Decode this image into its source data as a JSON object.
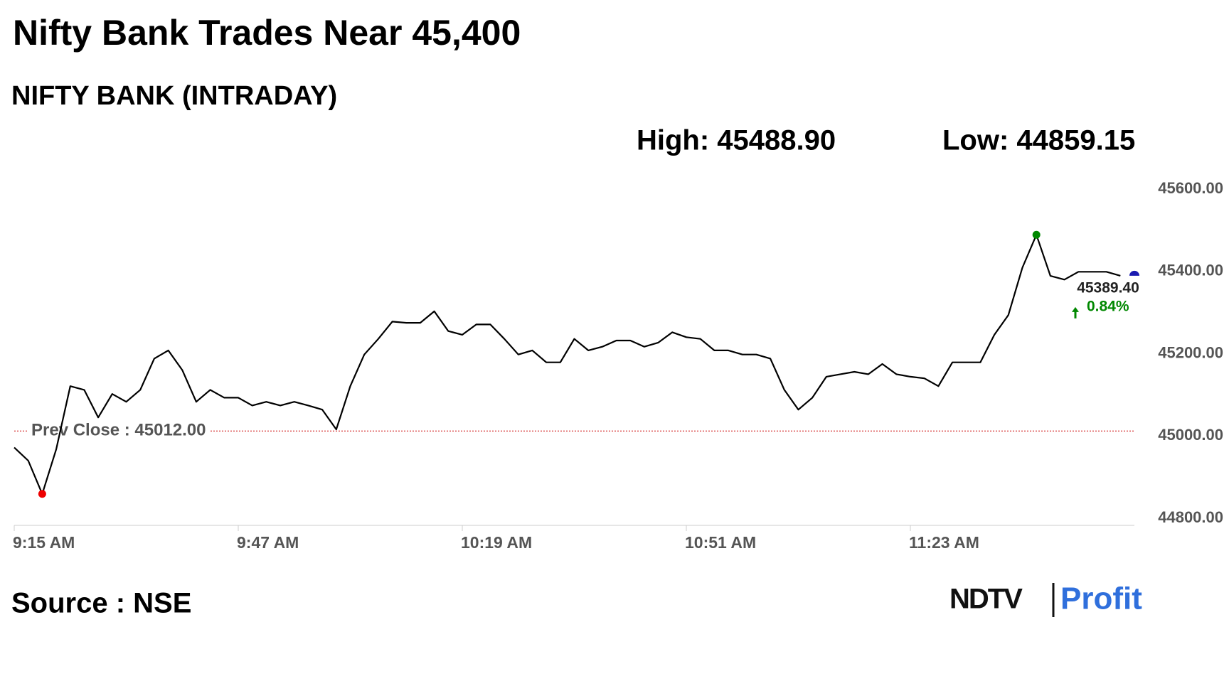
{
  "chart_data": {
    "type": "line",
    "title": "Nifty Bank Trades Near 45,400",
    "subtitle": "NIFTY BANK (INTRADAY)",
    "high_label": "High: 45488.90",
    "low_label": "Low: 44859.15",
    "prev_close_label": "Prev Close : 45012.00",
    "prev_close": 45012,
    "last_label": "45389.40",
    "change_label": "0.84%",
    "source": "Source : NSE",
    "brand": [
      "NDTV",
      "Profit"
    ],
    "color": "#000000",
    "x": [
      "9:15 AM",
      "9:17 AM",
      "9:19 AM",
      "9:21 AM",
      "9:23 AM",
      "9:25 AM",
      "9:27 AM",
      "9:29 AM",
      "9:31 AM",
      "9:33 AM",
      "9:35 AM",
      "9:37 AM",
      "9:39 AM",
      "9:41 AM",
      "9:43 AM",
      "9:45 AM",
      "9:47 AM",
      "9:49 AM",
      "9:51 AM",
      "9:53 AM",
      "9:55 AM",
      "9:57 AM",
      "9:59 AM",
      "10:01 AM",
      "10:03 AM",
      "10:05 AM",
      "10:07 AM",
      "10:09 AM",
      "10:11 AM",
      "10:13 AM",
      "10:15 AM",
      "10:17 AM",
      "10:19 AM",
      "10:21 AM",
      "10:23 AM",
      "10:25 AM",
      "10:27 AM",
      "10:29 AM",
      "10:31 AM",
      "10:33 AM",
      "10:35 AM",
      "10:37 AM",
      "10:39 AM",
      "10:41 AM",
      "10:43 AM",
      "10:45 AM",
      "10:47 AM",
      "10:49 AM",
      "10:51 AM",
      "10:53 AM",
      "10:55 AM",
      "10:57 AM",
      "10:59 AM",
      "11:01 AM",
      "11:03 AM",
      "11:05 AM",
      "11:07 AM",
      "11:09 AM",
      "11:11 AM",
      "11:13 AM",
      "11:15 AM",
      "11:17 AM",
      "11:19 AM",
      "11:21 AM",
      "11:23 AM",
      "11:25 AM",
      "11:27 AM",
      "11:29 AM",
      "11:31 AM",
      "11:33 AM",
      "11:35 AM",
      "11:37 AM",
      "11:39 AM",
      "11:41 AM",
      "11:43 AM",
      "11:45 AM",
      "11:47 AM",
      "11:49 AM",
      "11:51 AM",
      "11:53 AM",
      "11:55 AM"
    ],
    "values": [
      44972,
      44940,
      44859.15,
      44968,
      45121,
      45112,
      45045,
      45102,
      45083,
      45112,
      45188,
      45208,
      45160,
      45083,
      45112,
      45093,
      45093,
      45074,
      45083,
      45074,
      45083,
      45074,
      45064,
      45016,
      45121,
      45198,
      45236,
      45278,
      45275,
      45275,
      45303,
      45255,
      45246,
      45271,
      45271,
      45236,
      45198,
      45208,
      45179,
      45179,
      45236,
      45208,
      45217,
      45232,
      45232,
      45217,
      45227,
      45252,
      45240,
      45236,
      45208,
      45208,
      45198,
      45198,
      45188,
      45112,
      45064,
      45093,
      45144,
      45150,
      45156,
      45150,
      45175,
      45150,
      45144,
      45140,
      45121,
      45179,
      45179,
      45179,
      45246,
      45294,
      45409,
      45488.9,
      45389,
      45380,
      45399,
      45399,
      45399,
      45389.4,
      null
    ],
    "xticks": [
      "9:15 AM",
      "9:47 AM",
      "10:19 AM",
      "10:51 AM",
      "11:23 AM"
    ],
    "ylim": [
      44800,
      45600
    ],
    "yticks": [
      {
        "value": 44800,
        "label": "44800.00"
      },
      {
        "value": 45000,
        "label": "45000.00"
      },
      {
        "value": 45200,
        "label": "45200.00"
      },
      {
        "value": 45400,
        "label": "45400.00"
      },
      {
        "value": 45600,
        "label": "45600.00"
      }
    ]
  }
}
